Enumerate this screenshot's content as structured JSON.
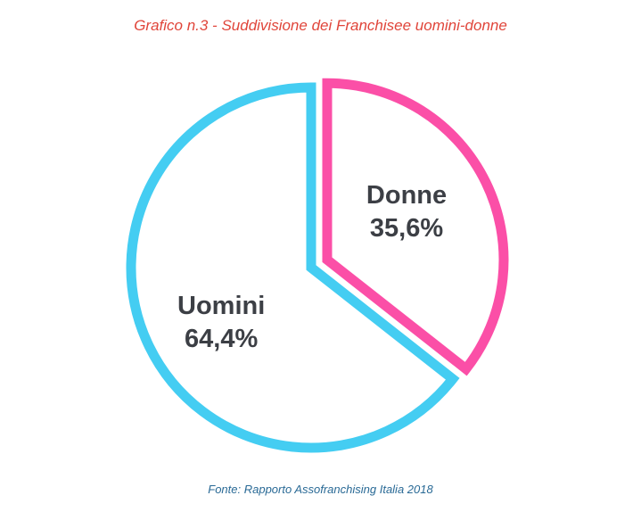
{
  "title": "Grafico n.3 - Suddivisione dei Franchisee uomini-donne",
  "source": "Fonte: Rapporto Assofranchising Italia 2018",
  "colors": {
    "title": "#e0453a",
    "source": "#2a6a96",
    "label_text": "#3c3f45"
  },
  "chart_data": {
    "type": "pie",
    "title": "Grafico n.3 - Suddivisione dei Franchisee uomini-donne",
    "slices": [
      {
        "name": "Donne",
        "value": 35.6,
        "value_label": "35,6%",
        "color": "#fb4fa7",
        "exploded": true
      },
      {
        "name": "Uomini",
        "value": 64.4,
        "value_label": "64,4%",
        "color": "#44cdf2",
        "exploded": false
      }
    ],
    "start_angle_deg": 0,
    "direction": "clockwise",
    "style": "outlined"
  }
}
